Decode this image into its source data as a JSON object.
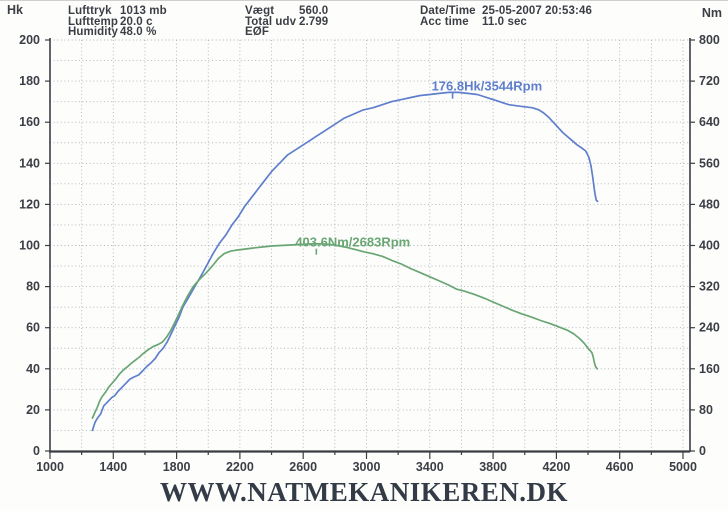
{
  "header": {
    "left": [
      {
        "label": "Lufttryk",
        "value": "1013 mb"
      },
      {
        "label": "Lufttemp",
        "value": "20.0 c"
      },
      {
        "label": "Humidity",
        "value": "48.0 %"
      }
    ],
    "middle": [
      {
        "label": "Vægt",
        "value": "560.0"
      },
      {
        "label": "Total udv",
        "value": "2.799"
      },
      {
        "label": "EØF",
        "value": ""
      }
    ],
    "right": [
      {
        "label": "Date/Time",
        "value": "25-05-2007 20:53:46"
      },
      {
        "label": "Acc time",
        "value": "11.0 sec"
      }
    ]
  },
  "footer": {
    "website": "WWW.NATMEKANIKEREN.DK"
  },
  "colors": {
    "power_line": "#5f7fcc",
    "torque_line": "#69a673",
    "grid": "#a9b2b9",
    "axis": "#3a3d42",
    "tick_label": "#3b3f45"
  },
  "chart_data": {
    "type": "line",
    "title": "",
    "xlabel": "Rpm",
    "grid": "dotted",
    "x_axis": {
      "min": 1000,
      "max": 5000,
      "tick_step": 400,
      "minor_step": 200,
      "ticks": [
        1000,
        1400,
        1800,
        2200,
        2600,
        3000,
        3400,
        3800,
        4200,
        4600,
        5000
      ]
    },
    "y_left": {
      "label": "Hk",
      "min": 0,
      "max": 200,
      "tick_step": 20,
      "minor_step": 10,
      "ticks": [
        0,
        20,
        40,
        60,
        80,
        100,
        120,
        140,
        160,
        180,
        200
      ]
    },
    "y_right": {
      "label": "Nm",
      "min": 0,
      "max": 800,
      "tick_step": 80,
      "minor_step": 40,
      "ticks": [
        0,
        80,
        160,
        240,
        320,
        400,
        480,
        560,
        640,
        720,
        800
      ]
    },
    "series": [
      {
        "name": "power",
        "axis": "left",
        "color": "#5f7fcc",
        "annotation": "176.8Hk/3544Rpm",
        "peak": {
          "rpm": 3544,
          "value": 176.8
        },
        "points": [
          [
            1268,
            10
          ],
          [
            1285,
            14
          ],
          [
            1300,
            16
          ],
          [
            1320,
            18
          ],
          [
            1340,
            22
          ],
          [
            1365,
            24
          ],
          [
            1390,
            26
          ],
          [
            1410,
            27
          ],
          [
            1430,
            29
          ],
          [
            1455,
            31
          ],
          [
            1480,
            33
          ],
          [
            1505,
            35
          ],
          [
            1530,
            36
          ],
          [
            1560,
            37
          ],
          [
            1585,
            39
          ],
          [
            1610,
            41
          ],
          [
            1640,
            43
          ],
          [
            1665,
            45
          ],
          [
            1690,
            48
          ],
          [
            1715,
            50
          ],
          [
            1740,
            53
          ],
          [
            1765,
            57
          ],
          [
            1790,
            61
          ],
          [
            1815,
            65
          ],
          [
            1840,
            70
          ],
          [
            1870,
            74
          ],
          [
            1900,
            78
          ],
          [
            1930,
            82
          ],
          [
            1960,
            86
          ],
          [
            1995,
            91
          ],
          [
            2030,
            96
          ],
          [
            2070,
            101
          ],
          [
            2110,
            105
          ],
          [
            2150,
            110
          ],
          [
            2190,
            114
          ],
          [
            2230,
            119
          ],
          [
            2270,
            123
          ],
          [
            2310,
            127
          ],
          [
            2350,
            131
          ],
          [
            2400,
            136
          ],
          [
            2450,
            140
          ],
          [
            2500,
            144
          ],
          [
            2560,
            147
          ],
          [
            2620,
            150
          ],
          [
            2680,
            153
          ],
          [
            2740,
            156
          ],
          [
            2800,
            159
          ],
          [
            2860,
            162
          ],
          [
            2920,
            164
          ],
          [
            2980,
            166
          ],
          [
            3040,
            167
          ],
          [
            3100,
            168.5
          ],
          [
            3160,
            170
          ],
          [
            3220,
            171
          ],
          [
            3280,
            172
          ],
          [
            3340,
            173
          ],
          [
            3400,
            173.5
          ],
          [
            3460,
            174
          ],
          [
            3520,
            174.5
          ],
          [
            3580,
            174.5
          ],
          [
            3640,
            174
          ],
          [
            3700,
            173.5
          ],
          [
            3740,
            172.5
          ],
          [
            3780,
            171.5
          ],
          [
            3820,
            170.5
          ],
          [
            3860,
            169.5
          ],
          [
            3900,
            168.5
          ],
          [
            3950,
            168
          ],
          [
            4000,
            167.5
          ],
          [
            4050,
            167
          ],
          [
            4090,
            166
          ],
          [
            4120,
            164.5
          ],
          [
            4150,
            162.5
          ],
          [
            4180,
            160
          ],
          [
            4210,
            157.5
          ],
          [
            4240,
            155
          ],
          [
            4270,
            153
          ],
          [
            4300,
            151
          ],
          [
            4330,
            149
          ],
          [
            4360,
            147.5
          ],
          [
            4385,
            146
          ],
          [
            4405,
            143
          ],
          [
            4418,
            139
          ],
          [
            4428,
            134
          ],
          [
            4437,
            129
          ],
          [
            4444,
            125
          ],
          [
            4452,
            122
          ],
          [
            4460,
            121.5
          ]
        ]
      },
      {
        "name": "torque",
        "axis": "right",
        "color": "#69a673",
        "annotation": "403.6Nm/2683Rpm",
        "peak": {
          "rpm": 2683,
          "value": 403.6
        },
        "points": [
          [
            1268,
            64
          ],
          [
            1285,
            76
          ],
          [
            1300,
            86
          ],
          [
            1315,
            98
          ],
          [
            1330,
            106
          ],
          [
            1350,
            114
          ],
          [
            1370,
            124
          ],
          [
            1390,
            131
          ],
          [
            1415,
            140
          ],
          [
            1440,
            150
          ],
          [
            1465,
            158
          ],
          [
            1490,
            164
          ],
          [
            1515,
            171
          ],
          [
            1540,
            177
          ],
          [
            1565,
            183
          ],
          [
            1590,
            190
          ],
          [
            1620,
            197
          ],
          [
            1650,
            203
          ],
          [
            1680,
            207
          ],
          [
            1710,
            212
          ],
          [
            1735,
            221
          ],
          [
            1760,
            233
          ],
          [
            1785,
            248
          ],
          [
            1810,
            264
          ],
          [
            1840,
            284
          ],
          [
            1870,
            302
          ],
          [
            1905,
            320
          ],
          [
            1945,
            334
          ],
          [
            1985,
            346
          ],
          [
            2025,
            360
          ],
          [
            2065,
            375
          ],
          [
            2100,
            384
          ],
          [
            2140,
            389
          ],
          [
            2180,
            391
          ],
          [
            2230,
            393
          ],
          [
            2280,
            395
          ],
          [
            2340,
            397
          ],
          [
            2400,
            399
          ],
          [
            2460,
            400
          ],
          [
            2520,
            401
          ],
          [
            2580,
            402
          ],
          [
            2640,
            403
          ],
          [
            2683,
            403.6
          ],
          [
            2730,
            403
          ],
          [
            2780,
            401.5
          ],
          [
            2830,
            399
          ],
          [
            2880,
            396
          ],
          [
            2930,
            392
          ],
          [
            2980,
            388
          ],
          [
            3040,
            384
          ],
          [
            3100,
            379
          ],
          [
            3160,
            371
          ],
          [
            3220,
            364
          ],
          [
            3280,
            355
          ],
          [
            3340,
            347
          ],
          [
            3400,
            339
          ],
          [
            3460,
            331
          ],
          [
            3520,
            323
          ],
          [
            3570,
            315
          ],
          [
            3620,
            311
          ],
          [
            3680,
            305
          ],
          [
            3740,
            298
          ],
          [
            3800,
            290
          ],
          [
            3860,
            282
          ],
          [
            3920,
            274
          ],
          [
            3980,
            267
          ],
          [
            4040,
            261
          ],
          [
            4100,
            254
          ],
          [
            4160,
            248
          ],
          [
            4220,
            241
          ],
          [
            4270,
            235
          ],
          [
            4310,
            228
          ],
          [
            4350,
            218
          ],
          [
            4380,
            208
          ],
          [
            4400,
            200
          ],
          [
            4415,
            195
          ],
          [
            4425,
            191
          ],
          [
            4432,
            184
          ],
          [
            4440,
            172
          ],
          [
            4448,
            164
          ],
          [
            4458,
            160
          ]
        ]
      }
    ]
  }
}
